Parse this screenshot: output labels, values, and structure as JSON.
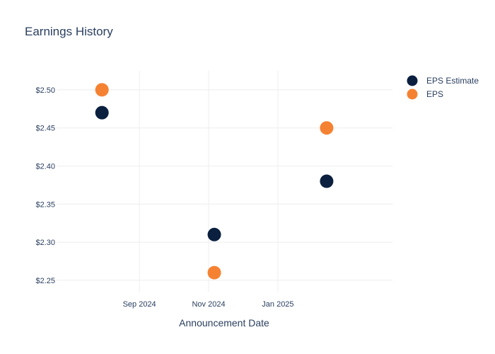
{
  "chart_data": {
    "type": "scatter",
    "title": "Earnings History",
    "xlabel": "Announcement Date",
    "ylabel": "",
    "x_axis": {
      "type": "date",
      "range": [
        "2024-06-20",
        "2025-04-12"
      ],
      "ticks": [
        {
          "date": "2024-09-01",
          "label": "Sep 2024"
        },
        {
          "date": "2024-11-01",
          "label": "Nov 2024"
        },
        {
          "date": "2025-01-01",
          "label": "Jan 2025"
        }
      ]
    },
    "y_axis": {
      "range": [
        2.235,
        2.525
      ],
      "ticks": [
        {
          "value": 2.25,
          "label": "$2.25"
        },
        {
          "value": 2.3,
          "label": "$2.30"
        },
        {
          "value": 2.35,
          "label": "$2.35"
        },
        {
          "value": 2.4,
          "label": "$2.40"
        },
        {
          "value": 2.45,
          "label": "$2.45"
        },
        {
          "value": 2.5,
          "label": "$2.50"
        }
      ]
    },
    "grid": true,
    "legend_position": "top-right",
    "series": [
      {
        "name": "EPS Estimate",
        "color": "#0b1f3f",
        "points": [
          {
            "x": "2024-07-30",
            "y": 2.47
          },
          {
            "x": "2024-11-06",
            "y": 2.31
          },
          {
            "x": "2025-02-13",
            "y": 2.38
          }
        ]
      },
      {
        "name": "EPS",
        "color": "#f58233",
        "points": [
          {
            "x": "2024-07-30",
            "y": 2.5
          },
          {
            "x": "2024-11-06",
            "y": 2.26
          },
          {
            "x": "2025-02-13",
            "y": 2.45
          }
        ]
      }
    ]
  }
}
